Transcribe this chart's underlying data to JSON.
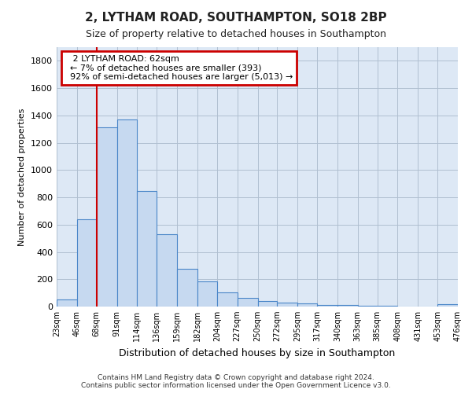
{
  "title": "2, LYTHAM ROAD, SOUTHAMPTON, SO18 2BP",
  "subtitle": "Size of property relative to detached houses in Southampton",
  "xlabel": "Distribution of detached houses by size in Southampton",
  "ylabel": "Number of detached properties",
  "footer_line1": "Contains HM Land Registry data © Crown copyright and database right 2024.",
  "footer_line2": "Contains public sector information licensed under the Open Government Licence v3.0.",
  "annotation_title": "2 LYTHAM ROAD: 62sqm",
  "annotation_line1": "← 7% of detached houses are smaller (393)",
  "annotation_line2": "92% of semi-detached houses are larger (5,013) →",
  "bar_edges": [
    23,
    46,
    68,
    91,
    114,
    136,
    159,
    182,
    204,
    227,
    250,
    272,
    295,
    317,
    340,
    363,
    385,
    408,
    431,
    453,
    476
  ],
  "bar_heights": [
    50,
    640,
    1310,
    1370,
    845,
    530,
    275,
    185,
    105,
    65,
    40,
    30,
    25,
    10,
    10,
    5,
    5,
    0,
    0,
    15,
    0
  ],
  "bar_color": "#c6d9f0",
  "bar_edge_color": "#4a86c8",
  "vline_color": "#cc0000",
  "vline_x": 68,
  "ylim": [
    0,
    1900
  ],
  "yticks": [
    0,
    200,
    400,
    600,
    800,
    1000,
    1200,
    1400,
    1600,
    1800
  ],
  "annotation_box_color": "#cc0000",
  "annotation_bg": "#ffffff",
  "grid_color": "#b0bfd0",
  "plot_bg_color": "#dde8f5",
  "fig_bg_color": "#ffffff"
}
